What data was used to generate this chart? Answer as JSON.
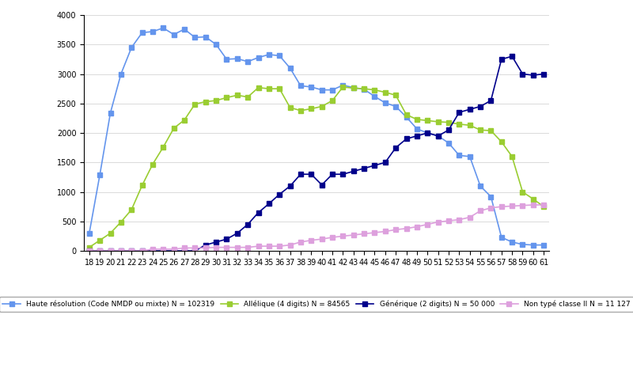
{
  "ages": [
    18,
    19,
    20,
    21,
    22,
    23,
    24,
    25,
    26,
    27,
    28,
    29,
    30,
    31,
    32,
    33,
    34,
    35,
    36,
    37,
    38,
    39,
    40,
    41,
    42,
    43,
    44,
    45,
    46,
    47,
    48,
    49,
    50,
    51,
    52,
    53,
    54,
    55,
    56,
    57,
    58,
    59,
    60,
    61
  ],
  "generique": [
    0,
    0,
    0,
    0,
    0,
    0,
    0,
    0,
    0,
    0,
    0,
    100,
    150,
    200,
    300,
    450,
    650,
    800,
    960,
    1100,
    1300,
    1300,
    1120,
    1300,
    1300,
    1350,
    1400,
    1450,
    1500,
    1750,
    1900,
    1950,
    2000,
    1950,
    2050,
    2350,
    2400,
    2450,
    2550,
    3250,
    3300,
    3000,
    2980,
    3000
  ],
  "allelique": [
    60,
    180,
    300,
    490,
    700,
    1110,
    1470,
    1760,
    2080,
    2220,
    2490,
    2530,
    2550,
    2600,
    2640,
    2610,
    2770,
    2750,
    2750,
    2430,
    2380,
    2410,
    2450,
    2550,
    2780,
    2760,
    2750,
    2730,
    2690,
    2640,
    2310,
    2230,
    2210,
    2190,
    2180,
    2150,
    2130,
    2050,
    2040,
    1850,
    1600,
    1000,
    880,
    750
  ],
  "haute_resolution": [
    300,
    1290,
    2340,
    3000,
    3450,
    3700,
    3720,
    3780,
    3670,
    3760,
    3620,
    3630,
    3500,
    3250,
    3260,
    3210,
    3280,
    3330,
    3310,
    3100,
    2800,
    2780,
    2730,
    2730,
    2810,
    2770,
    2740,
    2620,
    2510,
    2450,
    2270,
    2070,
    2000,
    1950,
    1830,
    1620,
    1600,
    1100,
    920,
    230,
    150,
    110,
    100,
    100
  ],
  "non_type": [
    0,
    0,
    0,
    0,
    0,
    0,
    30,
    30,
    30,
    50,
    50,
    50,
    60,
    60,
    60,
    60,
    80,
    80,
    80,
    100,
    150,
    180,
    200,
    230,
    250,
    270,
    290,
    310,
    330,
    360,
    380,
    410,
    450,
    490,
    510,
    530,
    570,
    680,
    730,
    750,
    760,
    770,
    780,
    780
  ],
  "color_generique": "#00008B",
  "color_allelique": "#9ACD32",
  "color_haute": "#6495ED",
  "color_non_type": "#DDA0DD",
  "legend_generique": "Générique (2 digits) N = 50 000",
  "legend_allelique": "Allélique (4 digits) N = 84565",
  "legend_haute": "Haute résolution (Code NMDP ou mixte) N = 102319",
  "legend_non_type": "Non typé classe II N = 11 127",
  "ylim": [
    0,
    4000
  ],
  "yticks": [
    0,
    500,
    1000,
    1500,
    2000,
    2500,
    3000,
    3500,
    4000
  ],
  "background_color": "#ffffff"
}
